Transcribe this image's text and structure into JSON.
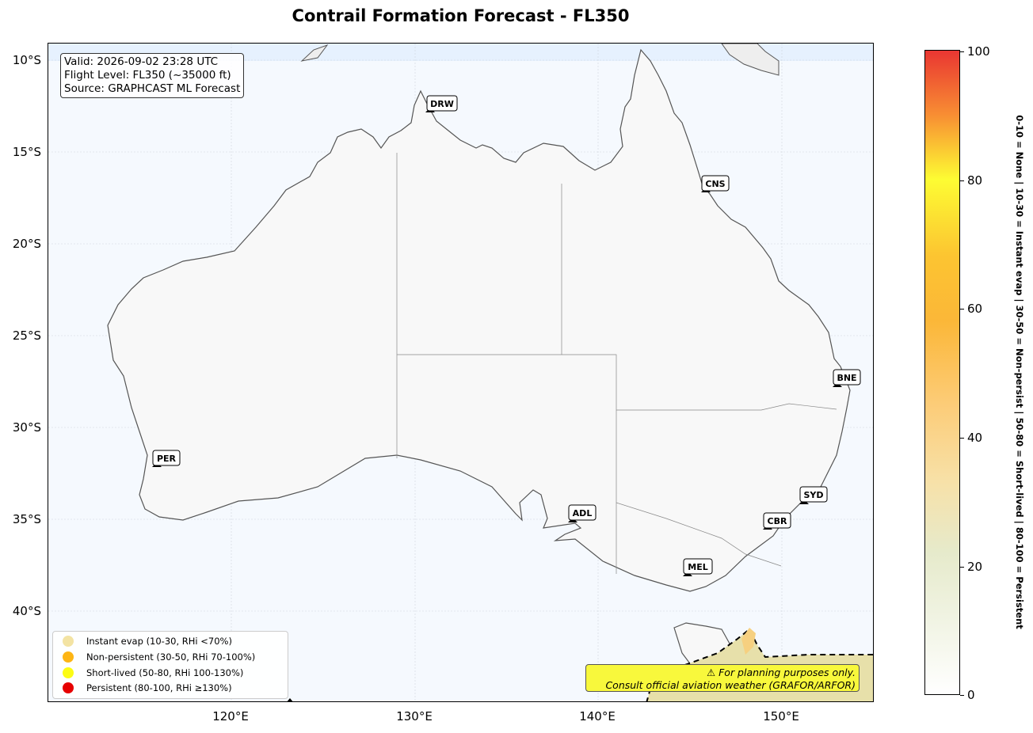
{
  "title": "Contrail Formation Forecast - FL350",
  "info": {
    "valid": "Valid: 2026-09-02 23:28 UTC",
    "flight_level": "Flight Level: FL350 (~35000 ft)",
    "source": "Source: GRAPHCAST ML Forecast"
  },
  "axes": {
    "lat_ticks": [
      "10°S",
      "15°S",
      "20°S",
      "25°S",
      "30°S",
      "35°S",
      "40°S"
    ],
    "lon_ticks": [
      "120°E",
      "130°E",
      "140°E",
      "150°E"
    ]
  },
  "airports": [
    {
      "code": "DRW"
    },
    {
      "code": "CNS"
    },
    {
      "code": "BNE"
    },
    {
      "code": "PER"
    },
    {
      "code": "ADL"
    },
    {
      "code": "SYD"
    },
    {
      "code": "CBR"
    },
    {
      "code": "MEL"
    }
  ],
  "legend": [
    {
      "label": "Instant evap (10-30, RHi <70%)",
      "color": "#f3e3a3"
    },
    {
      "label": "Non-persistent (30-50, RHi 70-100%)",
      "color": "#fdb514"
    },
    {
      "label": "Short-lived (50-80, RHi 100-130%)",
      "color": "#fcfc14"
    },
    {
      "label": "Persistent (80-100, RHi ≥130%)",
      "color": "#e60000"
    }
  ],
  "warning": {
    "line1": "⚠ For planning purposes only.",
    "line2": "Consult official aviation weather (GRAFOR/ARFOR)"
  },
  "colorbar": {
    "ticks": [
      "0",
      "20",
      "40",
      "60",
      "80",
      "100"
    ],
    "label": "0-10 = None | 10-30 = Instant evap | 30-50 = Non-persist | 50-80 = Short-lived | 80-100 = Persistent"
  },
  "colors": {
    "land": "#f8f8f8",
    "ocean": "#f5f9fe",
    "coastline": "#555555",
    "marker": "#000000"
  }
}
